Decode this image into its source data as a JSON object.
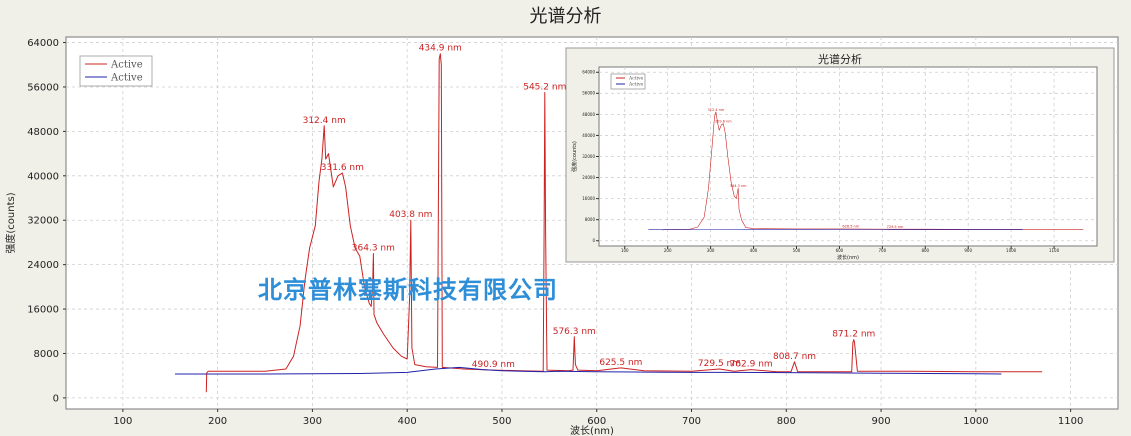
{
  "chart_data": [
    {
      "type": "line",
      "title": "光谱分析",
      "ylabel": "强度(counts)",
      "xlabel": "波长(nm)",
      "xlim": [
        40,
        1150
      ],
      "ylim": [
        -2000,
        65000
      ],
      "xticks": [
        100,
        200,
        300,
        400,
        500,
        600,
        700,
        800,
        900,
        1000,
        1100
      ],
      "yticks": [
        0,
        8000,
        16000,
        24000,
        32000,
        40000,
        48000,
        56000,
        64000
      ],
      "grid": true,
      "legend_position": "top-left",
      "colors": {
        "red": "#cc2222",
        "blue": "#2222aa"
      },
      "series": [
        {
          "name": "Active",
          "color": "#cc2222",
          "x": [
            188,
            188.5,
            190,
            250,
            272,
            280,
            287,
            292,
            297,
            303,
            307,
            310,
            312.4,
            314,
            317,
            322,
            327,
            331.6,
            335,
            340,
            345,
            350,
            355,
            360,
            362,
            363.5,
            364.3,
            365,
            368,
            375,
            385,
            394,
            400,
            402.5,
            403.8,
            405,
            408,
            420,
            432,
            433.8,
            434.9,
            436,
            437,
            460,
            490.9,
            520,
            543.5,
            544.5,
            545.2,
            546,
            547.5,
            570,
            575,
            576.3,
            577.5,
            580,
            600,
            625.5,
            650,
            700,
            729.5,
            745,
            762.9,
            790,
            805,
            808.7,
            812,
            850,
            869,
            870.3,
            871.2,
            872,
            875,
            930,
            1000,
            1070
          ],
          "values": [
            1000,
            4500,
            4800,
            4800,
            5200,
            7500,
            13000,
            21000,
            27000,
            31000,
            39000,
            43000,
            49000,
            43000,
            44000,
            38000,
            40000,
            40500,
            38000,
            31000,
            27000,
            25500,
            20000,
            17000,
            16500,
            20000,
            26000,
            15000,
            13500,
            11500,
            9000,
            7500,
            7000,
            18000,
            32000,
            9000,
            6000,
            5600,
            5500,
            61000,
            62000,
            60000,
            5500,
            5200,
            5000,
            4900,
            4800,
            30000,
            55000,
            30000,
            5000,
            4900,
            5000,
            11000,
            6000,
            5000,
            4900,
            5400,
            4900,
            4800,
            5200,
            4800,
            5100,
            4700,
            4700,
            6500,
            4700,
            4700,
            4700,
            10000,
            10500,
            10000,
            4800,
            4800,
            4700,
            4700
          ]
        },
        {
          "name": "Active",
          "color": "#2222aa",
          "x": [
            155,
            250,
            300,
            350,
            400,
            430,
            455,
            480,
            500,
            520,
            545,
            560,
            600,
            650,
            700,
            750,
            800,
            850,
            900,
            950,
            1000,
            1027
          ],
          "values": [
            4300,
            4300,
            4350,
            4400,
            4600,
            5200,
            5500,
            5100,
            4900,
            4800,
            4700,
            4800,
            4700,
            4650,
            4600,
            4600,
            4550,
            4500,
            4450,
            4400,
            4350,
            4300
          ]
        }
      ],
      "peak_labels": [
        {
          "x": 312.4,
          "y": 49000,
          "label": "312.4 nm"
        },
        {
          "x": 331.6,
          "y": 40500,
          "label": "331.6 nm"
        },
        {
          "x": 364.3,
          "y": 26000,
          "label": "364.3 nm"
        },
        {
          "x": 403.8,
          "y": 32000,
          "label": "403.8 nm"
        },
        {
          "x": 434.9,
          "y": 62000,
          "label": "434.9 nm"
        },
        {
          "x": 490.9,
          "y": 5000,
          "label": "490.9 nm"
        },
        {
          "x": 545.2,
          "y": 55000,
          "label": "545.2 nm"
        },
        {
          "x": 576.3,
          "y": 11000,
          "label": "576.3 nm"
        },
        {
          "x": 625.5,
          "y": 5400,
          "label": "625.5 nm"
        },
        {
          "x": 729.5,
          "y": 5200,
          "label": "729.5 nm"
        },
        {
          "x": 762.9,
          "y": 5100,
          "label": "762.9 nm"
        },
        {
          "x": 808.7,
          "y": 6500,
          "label": "808.7 nm"
        },
        {
          "x": 871.2,
          "y": 10500,
          "label": "871.2 nm"
        }
      ]
    },
    {
      "type": "line",
      "title": "光谱分析",
      "ylabel": "强度(counts)",
      "xlabel": "波长(nm)",
      "xlim": [
        40,
        1200
      ],
      "ylim": [
        -2000,
        66000
      ],
      "xticks": [
        100,
        200,
        300,
        400,
        500,
        600,
        700,
        800,
        900,
        1000,
        1100
      ],
      "yticks": [
        0,
        8000,
        16000,
        24000,
        32000,
        40000,
        48000,
        56000,
        64000
      ],
      "grid": true,
      "legend_position": "top-left",
      "series": [
        {
          "name": "Active",
          "color": "#cc2222",
          "x": [
            188,
            190,
            250,
            270,
            285,
            295,
            303,
            309,
            312.4,
            316,
            320,
            325,
            329.6,
            334,
            340,
            348,
            355,
            360,
            363,
            364.3,
            366,
            372,
            382,
            400,
            500,
            600,
            700,
            800,
            900,
            1000,
            1168
          ],
          "values": [
            4000,
            4200,
            4300,
            5200,
            9000,
            20000,
            35000,
            47000,
            49000,
            45000,
            42000,
            44000,
            44500,
            41000,
            32000,
            22000,
            17000,
            16000,
            19000,
            20000,
            12000,
            8000,
            5000,
            4600,
            4500,
            4500,
            4400,
            4400,
            4300,
            4300,
            4300
          ]
        },
        {
          "name": "Active",
          "color": "#2222aa",
          "x": [
            155,
            300,
            500,
            700,
            900,
            1027
          ],
          "values": [
            4200,
            4250,
            4300,
            4250,
            4200,
            4200
          ]
        }
      ],
      "peak_labels": [
        {
          "x": 312.4,
          "y": 49000,
          "label": "312.4 nm"
        },
        {
          "x": 329.6,
          "y": 44500,
          "label": "329.6 nm"
        },
        {
          "x": 364.3,
          "y": 20000,
          "label": "364.3 nm"
        },
        {
          "x": 626.5,
          "y": 4600,
          "label": "626.5 nm"
        },
        {
          "x": 729.5,
          "y": 4500,
          "label": "729.5 nm"
        }
      ]
    }
  ],
  "watermark": "北京普林塞斯科技有限公司"
}
